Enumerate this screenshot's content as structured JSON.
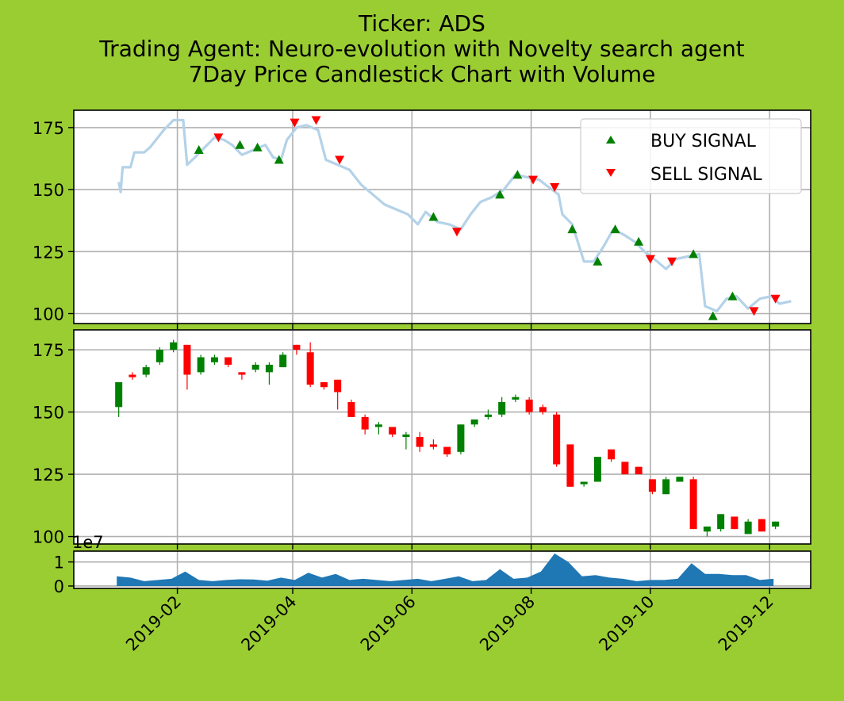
{
  "titles": {
    "line1": "Ticker: ADS",
    "line2": "Trading Agent: Neuro-evolution with Novelty search agent",
    "line3": "7Day Price Candlestick Chart with Volume"
  },
  "colors": {
    "background": "#9acd32",
    "price_line": "#b4d2e8",
    "buy": "#008000",
    "sell": "#ff0000",
    "candle_up": "#008000",
    "candle_down": "#ff0000",
    "volume": "#1f77b4",
    "grid": "#b0b0b0"
  },
  "chart_data": [
    {
      "type": "line",
      "panel": "price-signals",
      "ylim": [
        96,
        182
      ],
      "yticks": [
        100,
        125,
        150,
        175
      ],
      "grid": true,
      "legend": {
        "placement": "top-right",
        "entries": [
          "BUY SIGNAL",
          "SELL SIGNAL"
        ]
      },
      "price": [
        [
          "2019-01-02",
          153
        ],
        [
          "2019-01-03",
          149
        ],
        [
          "2019-01-04",
          159
        ],
        [
          "2019-01-08",
          159
        ],
        [
          "2019-01-10",
          165
        ],
        [
          "2019-01-15",
          165
        ],
        [
          "2019-01-18",
          167
        ],
        [
          "2019-01-22",
          171
        ],
        [
          "2019-01-25",
          174
        ],
        [
          "2019-01-30",
          178
        ],
        [
          "2019-02-04",
          178
        ],
        [
          "2019-02-06",
          160
        ],
        [
          "2019-02-10",
          163
        ],
        [
          "2019-02-15",
          167
        ],
        [
          "2019-02-20",
          171
        ],
        [
          "2019-02-25",
          170
        ],
        [
          "2019-03-01",
          168
        ],
        [
          "2019-03-06",
          164
        ],
        [
          "2019-03-12",
          166
        ],
        [
          "2019-03-18",
          168
        ],
        [
          "2019-03-22",
          163
        ],
        [
          "2019-03-26",
          162
        ],
        [
          "2019-03-29",
          170
        ],
        [
          "2019-04-03",
          175
        ],
        [
          "2019-04-08",
          176
        ],
        [
          "2019-04-14",
          174
        ],
        [
          "2019-04-18",
          162
        ],
        [
          "2019-04-24",
          160
        ],
        [
          "2019-04-30",
          158
        ],
        [
          "2019-05-06",
          152
        ],
        [
          "2019-05-12",
          148
        ],
        [
          "2019-05-18",
          144
        ],
        [
          "2019-05-24",
          142
        ],
        [
          "2019-05-30",
          140
        ],
        [
          "2019-06-04",
          136
        ],
        [
          "2019-06-08",
          141
        ],
        [
          "2019-06-14",
          137
        ],
        [
          "2019-06-20",
          136
        ],
        [
          "2019-06-26",
          134
        ],
        [
          "2019-07-01",
          140
        ],
        [
          "2019-07-06",
          145
        ],
        [
          "2019-07-12",
          147
        ],
        [
          "2019-07-18",
          150
        ],
        [
          "2019-07-24",
          156
        ],
        [
          "2019-07-30",
          155
        ],
        [
          "2019-08-05",
          154
        ],
        [
          "2019-08-10",
          151
        ],
        [
          "2019-08-15",
          148
        ],
        [
          "2019-08-17",
          140
        ],
        [
          "2019-08-22",
          136
        ],
        [
          "2019-08-28",
          121
        ],
        [
          "2019-09-02",
          121
        ],
        [
          "2019-09-07",
          127
        ],
        [
          "2019-09-12",
          134
        ],
        [
          "2019-09-17",
          132
        ],
        [
          "2019-09-23",
          129
        ],
        [
          "2019-09-28",
          125
        ],
        [
          "2019-10-03",
          122
        ],
        [
          "2019-10-09",
          118
        ],
        [
          "2019-10-14",
          122
        ],
        [
          "2019-10-20",
          123
        ],
        [
          "2019-10-26",
          124
        ],
        [
          "2019-10-29",
          103
        ],
        [
          "2019-11-04",
          101
        ],
        [
          "2019-11-09",
          106
        ],
        [
          "2019-11-14",
          107
        ],
        [
          "2019-11-20",
          102
        ],
        [
          "2019-11-26",
          106
        ],
        [
          "2019-12-02",
          107
        ],
        [
          "2019-12-06",
          104
        ],
        [
          "2019-12-12",
          105
        ]
      ],
      "buy_signals": [
        [
          "2019-02-12",
          166
        ],
        [
          "2019-03-05",
          168
        ],
        [
          "2019-03-14",
          167
        ],
        [
          "2019-03-25",
          162
        ],
        [
          "2019-06-12",
          139
        ],
        [
          "2019-07-16",
          148
        ],
        [
          "2019-07-25",
          156
        ],
        [
          "2019-08-22",
          134
        ],
        [
          "2019-09-04",
          121
        ],
        [
          "2019-09-13",
          134
        ],
        [
          "2019-09-25",
          129
        ],
        [
          "2019-10-23",
          124
        ],
        [
          "2019-11-02",
          99
        ],
        [
          "2019-11-12",
          107
        ]
      ],
      "sell_signals": [
        [
          "2019-02-22",
          171
        ],
        [
          "2019-04-02",
          177
        ],
        [
          "2019-04-13",
          178
        ],
        [
          "2019-04-25",
          162
        ],
        [
          "2019-06-24",
          133
        ],
        [
          "2019-08-02",
          154
        ],
        [
          "2019-08-13",
          151
        ],
        [
          "2019-10-01",
          122
        ],
        [
          "2019-10-12",
          121
        ],
        [
          "2019-11-23",
          101
        ],
        [
          "2019-12-04",
          106
        ]
      ]
    },
    {
      "type": "candlestick",
      "panel": "candles",
      "ylim": [
        97,
        183
      ],
      "yticks": [
        100,
        125,
        150,
        175
      ],
      "grid": true,
      "candles": [
        [
          "2019-01-02",
          152,
          162,
          148,
          162
        ],
        [
          "2019-01-09",
          165,
          164,
          163,
          166
        ],
        [
          "2019-01-16",
          165,
          168,
          164,
          169
        ],
        [
          "2019-01-23",
          170,
          175,
          169,
          176
        ],
        [
          "2019-01-30",
          175,
          178,
          174,
          179
        ],
        [
          "2019-02-06",
          177,
          165,
          159,
          177
        ],
        [
          "2019-02-13",
          166,
          172,
          165,
          173
        ],
        [
          "2019-02-20",
          170,
          172,
          169,
          173
        ],
        [
          "2019-02-27",
          172,
          169,
          168,
          172
        ],
        [
          "2019-03-06",
          166,
          165,
          163,
          166
        ],
        [
          "2019-03-13",
          167,
          169,
          166,
          170
        ],
        [
          "2019-03-20",
          166,
          169,
          161,
          170
        ],
        [
          "2019-03-27",
          168,
          173,
          168,
          174
        ],
        [
          "2019-04-03",
          177,
          175,
          173,
          177
        ],
        [
          "2019-04-10",
          174,
          161,
          160,
          178
        ],
        [
          "2019-04-17",
          162,
          160,
          159,
          162
        ],
        [
          "2019-04-24",
          163,
          158,
          151,
          163
        ],
        [
          "2019-05-01",
          154,
          148,
          148,
          155
        ],
        [
          "2019-05-08",
          148,
          143,
          141,
          149
        ],
        [
          "2019-05-15",
          144,
          145,
          141,
          146
        ],
        [
          "2019-05-22",
          144,
          141,
          140,
          144
        ],
        [
          "2019-05-29",
          140,
          141,
          135,
          142
        ],
        [
          "2019-06-05",
          140,
          136,
          134,
          142
        ],
        [
          "2019-06-12",
          137,
          136,
          135,
          139
        ],
        [
          "2019-06-19",
          136,
          133,
          132,
          136
        ],
        [
          "2019-06-26",
          134,
          145,
          133,
          145
        ],
        [
          "2019-07-03",
          145,
          147,
          144,
          147
        ],
        [
          "2019-07-10",
          148,
          149,
          147,
          151
        ],
        [
          "2019-07-17",
          149,
          154,
          148,
          156
        ],
        [
          "2019-07-24",
          155,
          156,
          154,
          157
        ],
        [
          "2019-07-31",
          155,
          150,
          149,
          156
        ],
        [
          "2019-08-07",
          152,
          150,
          149,
          153
        ],
        [
          "2019-08-14",
          149,
          129,
          128,
          150
        ],
        [
          "2019-08-21",
          137,
          120,
          120,
          137
        ],
        [
          "2019-08-28",
          121,
          122,
          120,
          122
        ],
        [
          "2019-09-04",
          122,
          132,
          122,
          132
        ],
        [
          "2019-09-11",
          135,
          131,
          130,
          135
        ],
        [
          "2019-09-18",
          130,
          125,
          125,
          130
        ],
        [
          "2019-09-25",
          128,
          125,
          125,
          128
        ],
        [
          "2019-10-02",
          123,
          118,
          117,
          123
        ],
        [
          "2019-10-09",
          117,
          123,
          117,
          124
        ],
        [
          "2019-10-16",
          122,
          124,
          122,
          124
        ],
        [
          "2019-10-23",
          123,
          103,
          103,
          124
        ],
        [
          "2019-10-30",
          102,
          104,
          100,
          104
        ],
        [
          "2019-11-06",
          103,
          109,
          102,
          109
        ],
        [
          "2019-11-13",
          108,
          103,
          103,
          108
        ],
        [
          "2019-11-20",
          101,
          106,
          101,
          107
        ],
        [
          "2019-11-27",
          107,
          102,
          102,
          107
        ],
        [
          "2019-12-04",
          104,
          106,
          103,
          106
        ]
      ]
    },
    {
      "type": "area",
      "panel": "volume",
      "offset_label": "1e7",
      "ylim": [
        -0.1,
        1.45
      ],
      "yticks": [
        0,
        1
      ],
      "grid": true,
      "volume": [
        [
          "2019-01-01",
          0.4
        ],
        [
          "2019-01-08",
          0.35
        ],
        [
          "2019-01-15",
          0.2
        ],
        [
          "2019-01-22",
          0.25
        ],
        [
          "2019-01-29",
          0.3
        ],
        [
          "2019-02-05",
          0.6
        ],
        [
          "2019-02-12",
          0.25
        ],
        [
          "2019-02-19",
          0.2
        ],
        [
          "2019-02-26",
          0.25
        ],
        [
          "2019-03-05",
          0.28
        ],
        [
          "2019-03-12",
          0.27
        ],
        [
          "2019-03-19",
          0.22
        ],
        [
          "2019-03-26",
          0.35
        ],
        [
          "2019-04-02",
          0.25
        ],
        [
          "2019-04-09",
          0.55
        ],
        [
          "2019-04-16",
          0.35
        ],
        [
          "2019-04-23",
          0.5
        ],
        [
          "2019-04-30",
          0.25
        ],
        [
          "2019-05-07",
          0.3
        ],
        [
          "2019-05-14",
          0.25
        ],
        [
          "2019-05-21",
          0.2
        ],
        [
          "2019-05-28",
          0.25
        ],
        [
          "2019-06-04",
          0.3
        ],
        [
          "2019-06-11",
          0.2
        ],
        [
          "2019-06-18",
          0.3
        ],
        [
          "2019-06-25",
          0.4
        ],
        [
          "2019-07-02",
          0.2
        ],
        [
          "2019-07-09",
          0.25
        ],
        [
          "2019-07-16",
          0.7
        ],
        [
          "2019-07-23",
          0.3
        ],
        [
          "2019-07-30",
          0.35
        ],
        [
          "2019-08-06",
          0.6
        ],
        [
          "2019-08-13",
          1.35
        ],
        [
          "2019-08-20",
          1.0
        ],
        [
          "2019-08-27",
          0.4
        ],
        [
          "2019-09-03",
          0.45
        ],
        [
          "2019-09-10",
          0.35
        ],
        [
          "2019-09-17",
          0.3
        ],
        [
          "2019-09-24",
          0.2
        ],
        [
          "2019-10-01",
          0.25
        ],
        [
          "2019-10-08",
          0.25
        ],
        [
          "2019-10-15",
          0.3
        ],
        [
          "2019-10-22",
          0.95
        ],
        [
          "2019-10-29",
          0.5
        ],
        [
          "2019-11-05",
          0.5
        ],
        [
          "2019-11-12",
          0.45
        ],
        [
          "2019-11-19",
          0.45
        ],
        [
          "2019-11-26",
          0.25
        ],
        [
          "2019-12-03",
          0.3
        ]
      ]
    }
  ],
  "x_axis": {
    "start": "2018-12-10",
    "end": "2019-12-22",
    "ticks": [
      "2019-02",
      "2019-04",
      "2019-06",
      "2019-08",
      "2019-10",
      "2019-12"
    ],
    "tick_dates": [
      "2019-02-01",
      "2019-04-01",
      "2019-06-01",
      "2019-08-01",
      "2019-10-01",
      "2019-12-01"
    ]
  }
}
